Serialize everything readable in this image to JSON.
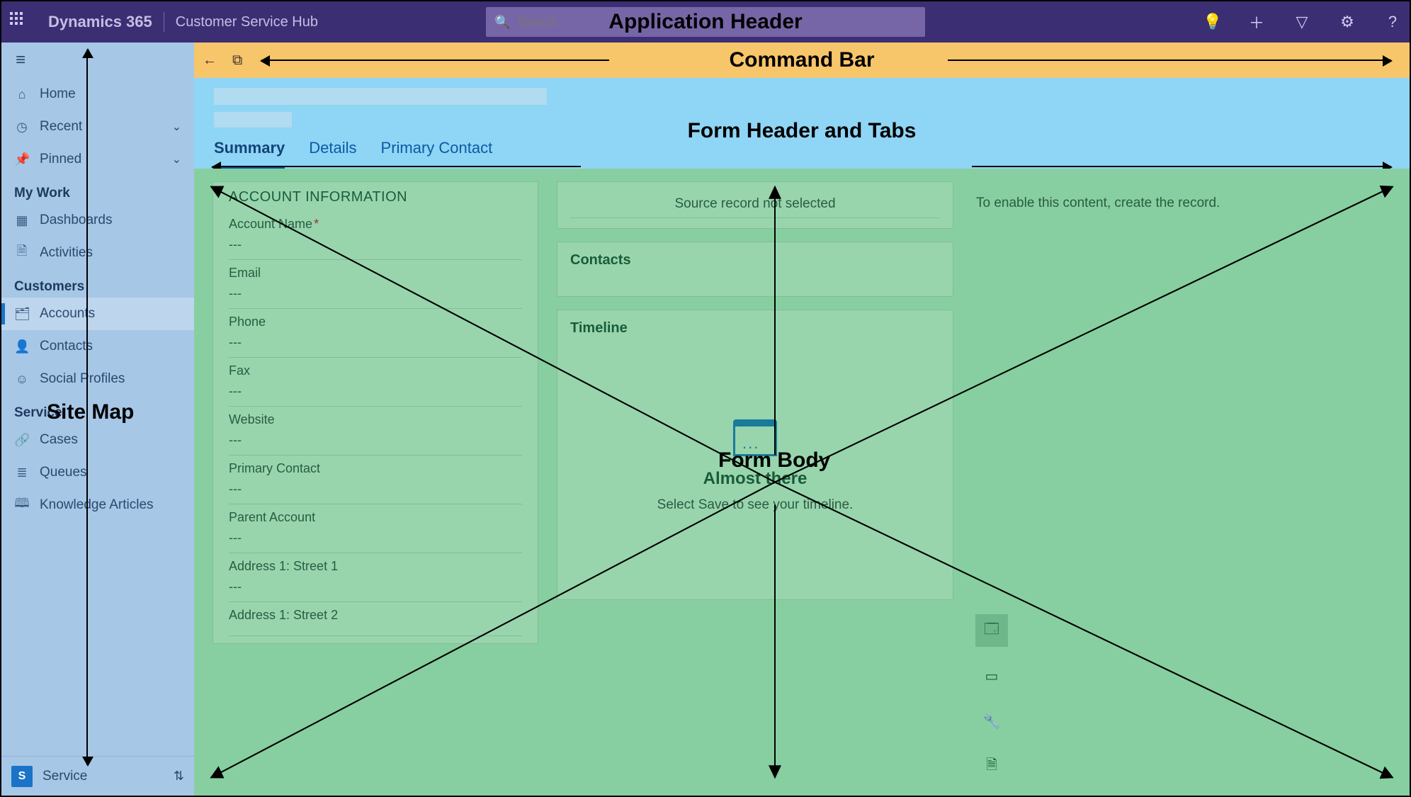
{
  "colors": {
    "header_bg": "#3b2e73",
    "sidebar_bg": "#a7c7e7",
    "command_bar_bg": "#f7c66a",
    "form_header_bg": "#8fd5f5",
    "form_body_bg": "#87cfa0",
    "tab_active": "#0b5aa6",
    "annotation": "#000000"
  },
  "annotations": {
    "app_header": "Application Header",
    "command_bar": "Command Bar",
    "form_header": "Form Header and Tabs",
    "site_map": "Site Map",
    "form_body": "Form Body"
  },
  "app_header": {
    "brand": "Dynamics 365",
    "app_name": "Customer Service Hub",
    "search_placeholder": "Search"
  },
  "sidebar": {
    "top": [
      {
        "icon": "⌂",
        "label": "Home"
      },
      {
        "icon": "◷",
        "label": "Recent",
        "chev": true
      },
      {
        "icon": "📌",
        "label": "Pinned",
        "chev": true
      }
    ],
    "groups": [
      {
        "label": "My Work",
        "items": [
          {
            "icon": "▦",
            "label": "Dashboards"
          },
          {
            "icon": "🗎",
            "label": "Activities"
          }
        ]
      },
      {
        "label": "Customers",
        "items": [
          {
            "icon": "🗂",
            "label": "Accounts",
            "selected": true
          },
          {
            "icon": "👤",
            "label": "Contacts"
          },
          {
            "icon": "☺",
            "label": "Social Profiles"
          }
        ]
      },
      {
        "label": "Service",
        "items": [
          {
            "icon": "🔗",
            "label": "Cases"
          },
          {
            "icon": "≣",
            "label": "Queues"
          },
          {
            "icon": "🕮",
            "label": "Knowledge Articles"
          }
        ]
      }
    ],
    "footer": {
      "chip": "S",
      "area": "Service"
    }
  },
  "form": {
    "tabs": [
      "Summary",
      "Details",
      "Primary Contact"
    ],
    "active_tab": "Summary",
    "col1": {
      "section_title": "ACCOUNT INFORMATION",
      "fields": [
        {
          "label": "Account Name",
          "required": true,
          "value": "---"
        },
        {
          "label": "Email",
          "value": "---"
        },
        {
          "label": "Phone",
          "value": "---"
        },
        {
          "label": "Fax",
          "value": "---"
        },
        {
          "label": "Website",
          "value": "---"
        },
        {
          "label": "Primary Contact",
          "value": "---"
        },
        {
          "label": "Parent Account",
          "value": "---"
        },
        {
          "label": "Address 1: Street 1",
          "value": "---"
        },
        {
          "label": "Address 1: Street 2",
          "value": ""
        }
      ]
    },
    "col2": {
      "source_msg": "Source record not selected",
      "contacts_title": "Contacts",
      "timeline_title": "Timeline",
      "timeline_heading": "Almost there",
      "timeline_hint": "Select Save to see your timeline."
    },
    "col3": {
      "note": "To enable this content, create the record."
    }
  }
}
